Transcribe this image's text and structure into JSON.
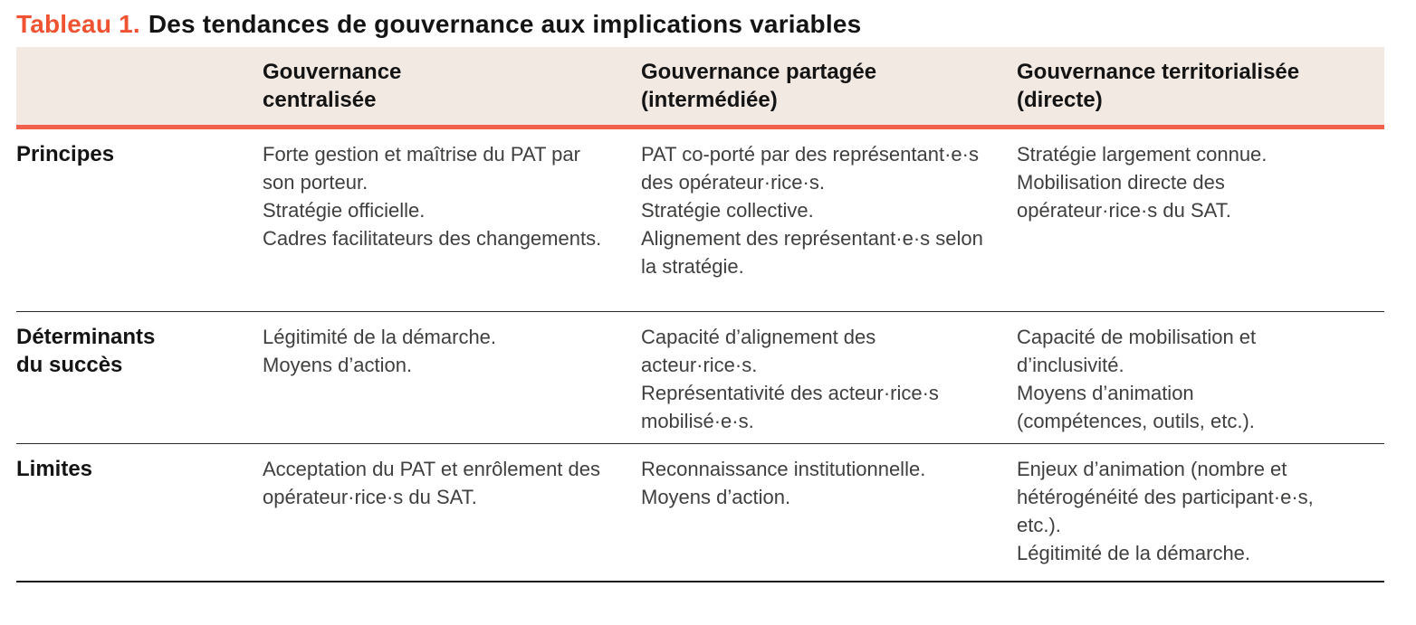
{
  "title": {
    "tag": "Tableau 1.",
    "text": "Des tendances de gouvernance aux implications variables"
  },
  "table": {
    "column_headers": [
      "Gouvernance\ncentralisée",
      "Gouvernance partagée\n(intermédiée)",
      "Gouvernance territorialisée\n(directe)"
    ],
    "rows": [
      {
        "label": "Principes",
        "cells": [
          "Forte gestion et maîtrise du PAT par son porteur.\nStratégie officielle.\nCadres facilitateurs des changements.",
          "PAT co-porté par des représentant·e·s des opérateur·rice·s.\nStratégie collective.\nAlignement des représentant·e·s selon la stratégie.",
          "Stratégie largement connue.\nMobilisation directe des opérateur·rice·s du SAT."
        ]
      },
      {
        "label": "Déterminants\ndu succès",
        "cells": [
          "Légitimité de la démarche.\nMoyens d’action.",
          "Capacité d’alignement des acteur·rice·s.\nReprésentativité des acteur·rice·s mobilisé·e·s.",
          "Capacité de mobilisation et d’inclusivité.\nMoyens d’animation\n(compétences, outils, etc.)."
        ]
      },
      {
        "label": "Limites",
        "cells": [
          "Acceptation du PAT et enrôlement des opérateur·rice·s du SAT.",
          "Reconnaissance institutionnelle.\nMoyens d’action.",
          "Enjeux d’animation (nombre et hétérogénéité des participant·e·s, etc.).\nLégitimité de la démarche."
        ]
      }
    ]
  },
  "colors": {
    "title_tag_orange": "#ef5331",
    "accent_rule_orange": "#f0604a",
    "header_background": "#f2e9e3",
    "heading_text": "#141414",
    "body_text": "#3f3f3e",
    "row_separator": "#2b2b2b",
    "bottom_border": "#1a1a1a"
  }
}
